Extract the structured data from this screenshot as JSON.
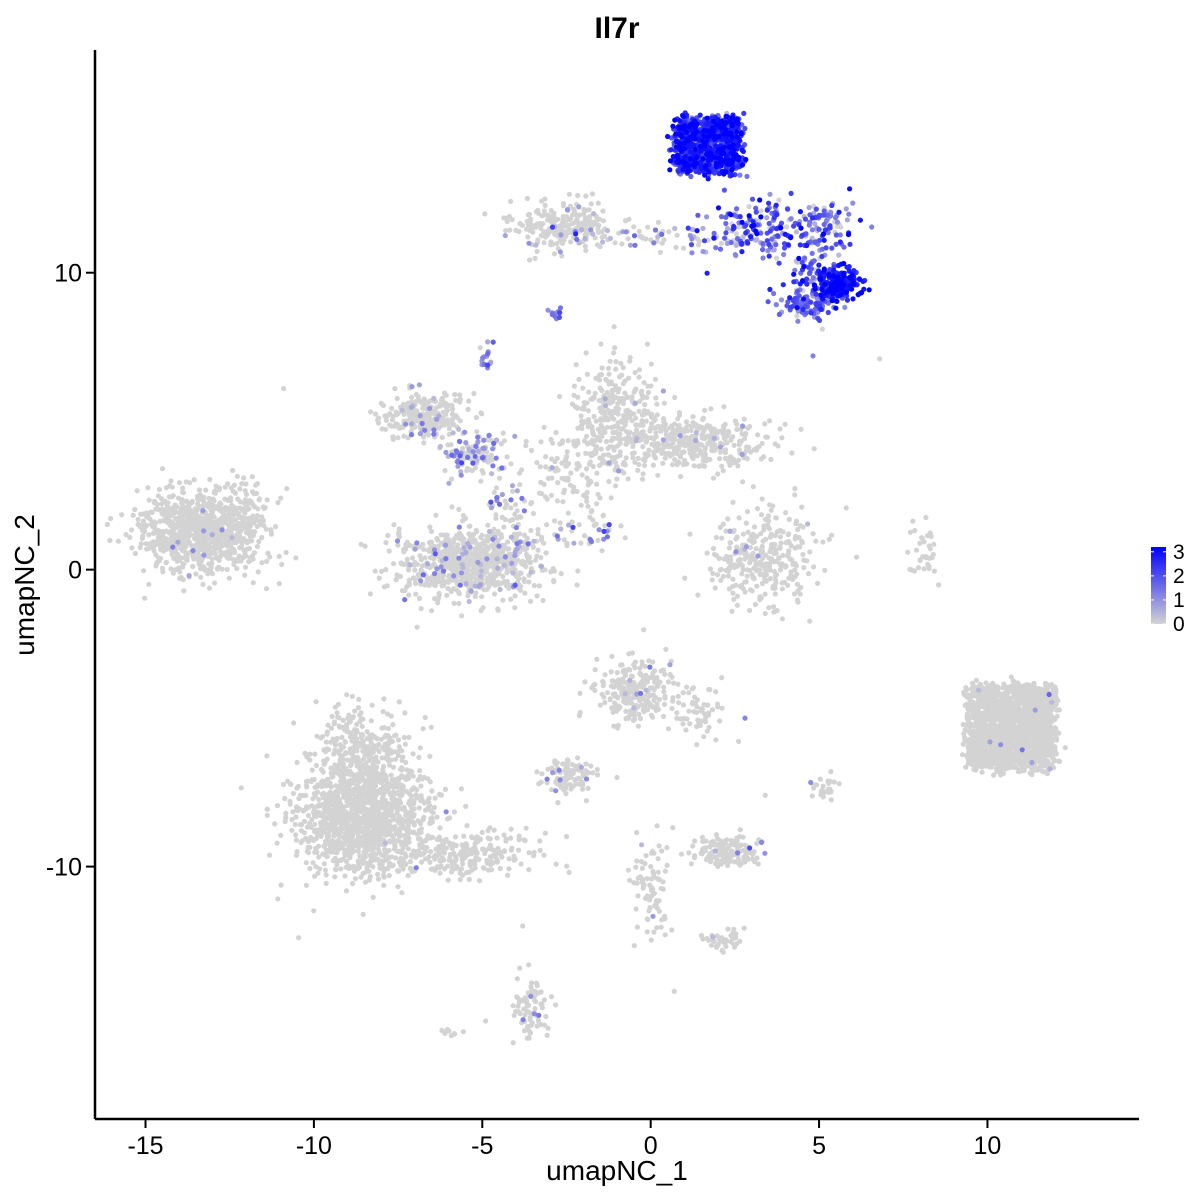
{
  "chart_data": {
    "type": "scatter",
    "title": "Il7r",
    "xlabel": "umapNC_1",
    "ylabel": "umapNC_2",
    "xlim": [
      -16.5,
      14.5
    ],
    "ylim": [
      -18.5,
      17.5
    ],
    "x_ticks": [
      -15,
      -10,
      -5,
      0,
      5,
      10
    ],
    "y_ticks": [
      -10,
      0,
      10
    ],
    "grid": false,
    "color_scale": {
      "name": "",
      "min": 0,
      "max": 3.2,
      "low_color": "#d3d3d3",
      "high_color": "#0000ff",
      "ticks": [
        0,
        1,
        2,
        3
      ],
      "placement": "right"
    },
    "clusters": [
      {
        "cx": 1.7,
        "cy": 14.3,
        "sx": 0.75,
        "sy": 0.75,
        "n": 900,
        "shape": "box",
        "w": 1.0,
        "h": 1.0,
        "expr": [
          2.4,
          0.7
        ],
        "pos_frac": 1.0
      },
      {
        "cx": 3.5,
        "cy": 11.5,
        "sx": 1.0,
        "sy": 0.5,
        "n": 180,
        "expr": [
          1.7,
          0.8
        ],
        "pos_frac": 0.9
      },
      {
        "cx": 4.7,
        "cy": 10.3,
        "sx": 0.5,
        "sy": 0.8,
        "n": 100,
        "expr": [
          1.9,
          0.8
        ],
        "pos_frac": 0.9
      },
      {
        "cx": 5.6,
        "cy": 9.6,
        "sx": 0.35,
        "sy": 0.25,
        "n": 200,
        "expr": [
          2.9,
          0.4
        ],
        "pos_frac": 1.0
      },
      {
        "cx": 4.6,
        "cy": 8.9,
        "sx": 0.4,
        "sy": 0.25,
        "n": 100,
        "expr": [
          1.5,
          0.6
        ],
        "pos_frac": 0.95
      },
      {
        "cx": 5.3,
        "cy": 11.8,
        "sx": 0.35,
        "sy": 0.25,
        "n": 40,
        "expr": [
          1.2,
          0.6
        ],
        "pos_frac": 0.8
      },
      {
        "cx": 0.3,
        "cy": 11.2,
        "sx": 1.6,
        "sy": 0.25,
        "n": 90,
        "expr": [
          1.0,
          0.7
        ],
        "pos_frac": 0.5
      },
      {
        "cx": -2.6,
        "cy": 11.6,
        "sx": 0.8,
        "sy": 0.4,
        "n": 220,
        "expr": [
          0.7,
          0.4
        ],
        "pos_frac": 0.05
      },
      {
        "cx": -2.8,
        "cy": 8.6,
        "sx": 0.1,
        "sy": 0.1,
        "n": 10,
        "expr": [
          1.4,
          0.3
        ],
        "pos_frac": 1.0
      },
      {
        "cx": -4.8,
        "cy": 7.1,
        "sx": 0.15,
        "sy": 0.25,
        "n": 15,
        "expr": [
          1.3,
          0.5
        ],
        "pos_frac": 0.8
      },
      {
        "cx": -6.7,
        "cy": 5.2,
        "sx": 0.6,
        "sy": 0.4,
        "n": 260,
        "expr": [
          0.8,
          0.4
        ],
        "pos_frac": 0.06
      },
      {
        "cx": -5.2,
        "cy": 3.9,
        "sx": 0.5,
        "sy": 0.4,
        "n": 120,
        "expr": [
          0.9,
          0.5
        ],
        "pos_frac": 0.35
      },
      {
        "cx": -1.0,
        "cy": 5.2,
        "sx": 0.6,
        "sy": 0.9,
        "n": 300,
        "expr": [
          0.6,
          0.3
        ],
        "pos_frac": 0.02
      },
      {
        "cx": 1.3,
        "cy": 4.3,
        "sx": 1.1,
        "sy": 0.45,
        "n": 350,
        "expr": [
          0.6,
          0.3
        ],
        "pos_frac": 0.02
      },
      {
        "cx": -2.4,
        "cy": 3.2,
        "sx": 0.8,
        "sy": 1.0,
        "n": 120,
        "expr": [
          0.6,
          0.3
        ],
        "pos_frac": 0.04
      },
      {
        "cx": -5.4,
        "cy": 0.2,
        "sx": 1.1,
        "sy": 0.6,
        "n": 750,
        "expr": [
          0.8,
          0.4
        ],
        "pos_frac": 0.05
      },
      {
        "cx": -4.3,
        "cy": 1.4,
        "sx": 0.4,
        "sy": 0.8,
        "n": 60,
        "expr": [
          1.2,
          0.5
        ],
        "pos_frac": 0.4
      },
      {
        "cx": -1.9,
        "cy": 1.2,
        "sx": 0.5,
        "sy": 0.3,
        "n": 35,
        "expr": [
          1.1,
          0.5
        ],
        "pos_frac": 0.5
      },
      {
        "cx": 3.2,
        "cy": 0.4,
        "sx": 0.8,
        "sy": 0.8,
        "n": 320,
        "expr": [
          0.6,
          0.3
        ],
        "pos_frac": 0.02
      },
      {
        "cx": 8.1,
        "cy": 0.3,
        "sx": 0.2,
        "sy": 0.6,
        "n": 35,
        "expr": [
          0.6,
          0.3
        ],
        "pos_frac": 0.0
      },
      {
        "cx": -13.4,
        "cy": 1.3,
        "sx": 0.9,
        "sy": 0.7,
        "n": 850,
        "expr": [
          0.7,
          0.3
        ],
        "pos_frac": 0.01
      },
      {
        "cx": -12.1,
        "cy": 1.9,
        "sx": 0.4,
        "sy": 0.6,
        "n": 60,
        "expr": [
          0.7,
          0.3
        ],
        "pos_frac": 0.0
      },
      {
        "cx": 10.7,
        "cy": -5.3,
        "sx": 1.0,
        "sy": 1.15,
        "n": 1700,
        "shape": "box",
        "w": 1.0,
        "h": 1.0,
        "expr": [
          0.7,
          0.3
        ],
        "pos_frac": 0.006
      },
      {
        "cx": -8.6,
        "cy": -8.3,
        "sx": 1.0,
        "sy": 1.0,
        "n": 1300,
        "expr": [
          0.7,
          0.4
        ],
        "pos_frac": 0.005
      },
      {
        "cx": -8.7,
        "cy": -6.0,
        "sx": 0.6,
        "sy": 0.7,
        "n": 220,
        "expr": [
          0.7,
          0.4
        ],
        "pos_frac": 0.0
      },
      {
        "cx": -5.6,
        "cy": -9.6,
        "sx": 1.1,
        "sy": 0.4,
        "n": 240,
        "expr": [
          0.7,
          0.3
        ],
        "pos_frac": 0.0
      },
      {
        "cx": -0.5,
        "cy": -4.1,
        "sx": 0.55,
        "sy": 0.55,
        "n": 260,
        "expr": [
          0.9,
          0.4
        ],
        "pos_frac": 0.04
      },
      {
        "cx": 1.4,
        "cy": -4.8,
        "sx": 0.45,
        "sy": 0.5,
        "n": 60,
        "expr": [
          0.7,
          0.3
        ],
        "pos_frac": 0.0
      },
      {
        "cx": -2.5,
        "cy": -7.0,
        "sx": 0.35,
        "sy": 0.3,
        "n": 100,
        "expr": [
          1.0,
          0.4
        ],
        "pos_frac": 0.05
      },
      {
        "cx": 2.3,
        "cy": -9.5,
        "sx": 0.5,
        "sy": 0.25,
        "n": 150,
        "expr": [
          1.2,
          0.5
        ],
        "pos_frac": 0.08
      },
      {
        "cx": 0.0,
        "cy": -10.8,
        "sx": 0.3,
        "sy": 0.9,
        "n": 80,
        "expr": [
          0.9,
          0.4
        ],
        "pos_frac": 0.03
      },
      {
        "cx": 2.2,
        "cy": -12.4,
        "sx": 0.4,
        "sy": 0.2,
        "n": 40,
        "expr": [
          0.9,
          0.4
        ],
        "pos_frac": 0.05
      },
      {
        "cx": -3.6,
        "cy": -14.7,
        "sx": 0.25,
        "sy": 0.6,
        "n": 80,
        "expr": [
          1.0,
          0.4
        ],
        "pos_frac": 0.02
      },
      {
        "cx": 5.1,
        "cy": -7.3,
        "sx": 0.2,
        "sy": 0.2,
        "n": 25,
        "expr": [
          0.7,
          0.3
        ],
        "pos_frac": 0.05
      },
      {
        "cx": -6.0,
        "cy": -15.6,
        "sx": 0.15,
        "sy": 0.1,
        "n": 8,
        "expr": [
          0.5,
          0.2
        ],
        "pos_frac": 0.0
      }
    ],
    "extra_points": [
      {
        "x": -10.9,
        "y": 6.1,
        "v": 0
      },
      {
        "x": 6.8,
        "y": 7.1,
        "v": 0
      },
      {
        "x": 5.1,
        "y": 8.1,
        "v": 0
      },
      {
        "x": 2.8,
        "y": -5.0,
        "v": 1.2
      },
      {
        "x": -3.8,
        "y": -12.0,
        "v": 0
      },
      {
        "x": 0.7,
        "y": -14.2,
        "v": 0
      },
      {
        "x": -4.9,
        "y": -15.2,
        "v": 0
      },
      {
        "x": 0.0,
        "y": -10.0,
        "v": 0
      },
      {
        "x": -1.0,
        "y": -7.0,
        "v": 0
      },
      {
        "x": 3.4,
        "y": -7.6,
        "v": 0
      }
    ]
  }
}
